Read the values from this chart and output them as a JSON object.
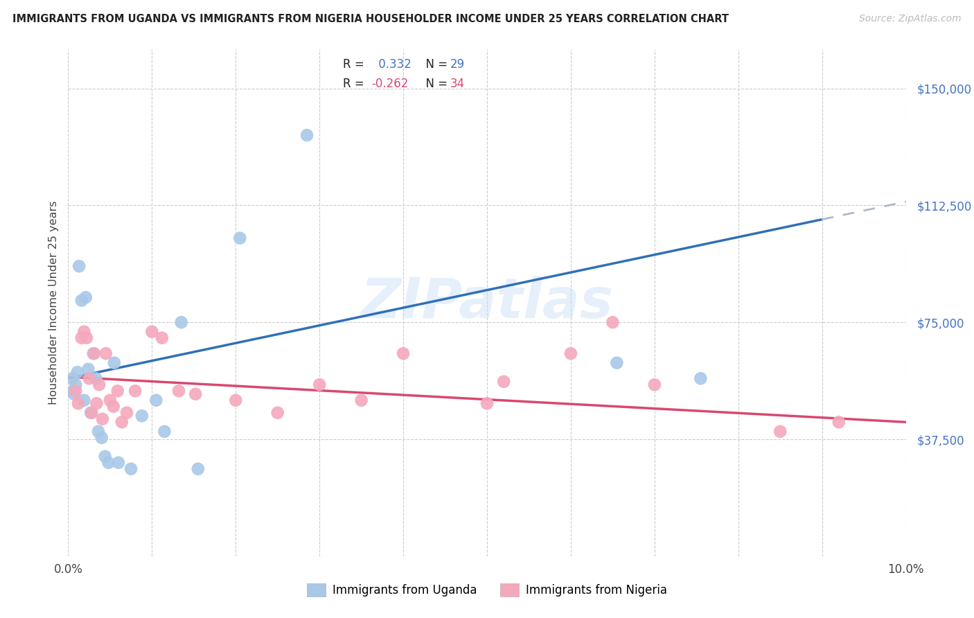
{
  "title": "IMMIGRANTS FROM UGANDA VS IMMIGRANTS FROM NIGERIA HOUSEHOLDER INCOME UNDER 25 YEARS CORRELATION CHART",
  "source": "Source: ZipAtlas.com",
  "ylabel": "Householder Income Under 25 years",
  "xlim": [
    0,
    10
  ],
  "ylim": [
    0,
    162500
  ],
  "yticks": [
    0,
    37500,
    75000,
    112500,
    150000
  ],
  "ytick_labels": [
    "",
    "$37,500",
    "$75,000",
    "$112,500",
    "$150,000"
  ],
  "xticks": [
    0,
    1,
    2,
    3,
    4,
    5,
    6,
    7,
    8,
    9,
    10
  ],
  "xtick_labels": [
    "0.0%",
    "",
    "",
    "",
    "",
    "",
    "",
    "",
    "",
    "",
    "10.0%"
  ],
  "uganda_color": "#a8c8e8",
  "nigeria_color": "#f4a8bc",
  "uganda_line_color": "#3070b8",
  "nigeria_line_color": "#d84870",
  "uganda_R": 0.332,
  "uganda_N": 29,
  "nigeria_R": -0.262,
  "nigeria_N": 34,
  "uganda_line_x0": 0,
  "uganda_line_y0": 57000,
  "uganda_line_x1": 9.0,
  "uganda_line_y1": 108000,
  "nigeria_line_x0": 0,
  "nigeria_line_y0": 57500,
  "nigeria_line_x1": 10,
  "nigeria_line_y1": 43000,
  "uganda_x": [
    0.05,
    0.07,
    0.09,
    0.11,
    0.13,
    0.16,
    0.19,
    0.21,
    0.24,
    0.27,
    0.3,
    0.33,
    0.36,
    0.4,
    0.44,
    0.48,
    0.55,
    0.6,
    0.75,
    0.88,
    1.05,
    1.15,
    1.35,
    1.55,
    2.05,
    2.85,
    6.55,
    7.55,
    0.06
  ],
  "uganda_y": [
    57000,
    52000,
    55000,
    59000,
    93000,
    82000,
    50000,
    83000,
    60000,
    46000,
    65000,
    57000,
    40000,
    38000,
    32000,
    30000,
    62000,
    30000,
    28000,
    45000,
    50000,
    40000,
    75000,
    28000,
    102000,
    135000,
    62000,
    57000,
    53000
  ],
  "nigeria_x": [
    0.09,
    0.12,
    0.16,
    0.19,
    0.22,
    0.25,
    0.28,
    0.31,
    0.34,
    0.37,
    0.41,
    0.45,
    0.5,
    0.54,
    0.59,
    0.64,
    0.7,
    0.8,
    1.0,
    1.12,
    1.32,
    1.52,
    2.0,
    2.5,
    3.0,
    3.5,
    4.0,
    5.0,
    5.2,
    6.0,
    6.5,
    7.0,
    8.5,
    9.2
  ],
  "nigeria_y": [
    53000,
    49000,
    70000,
    72000,
    70000,
    57000,
    46000,
    65000,
    49000,
    55000,
    44000,
    65000,
    50000,
    48000,
    53000,
    43000,
    46000,
    53000,
    72000,
    70000,
    53000,
    52000,
    50000,
    46000,
    55000,
    50000,
    65000,
    49000,
    56000,
    65000,
    75000,
    55000,
    40000,
    43000
  ]
}
